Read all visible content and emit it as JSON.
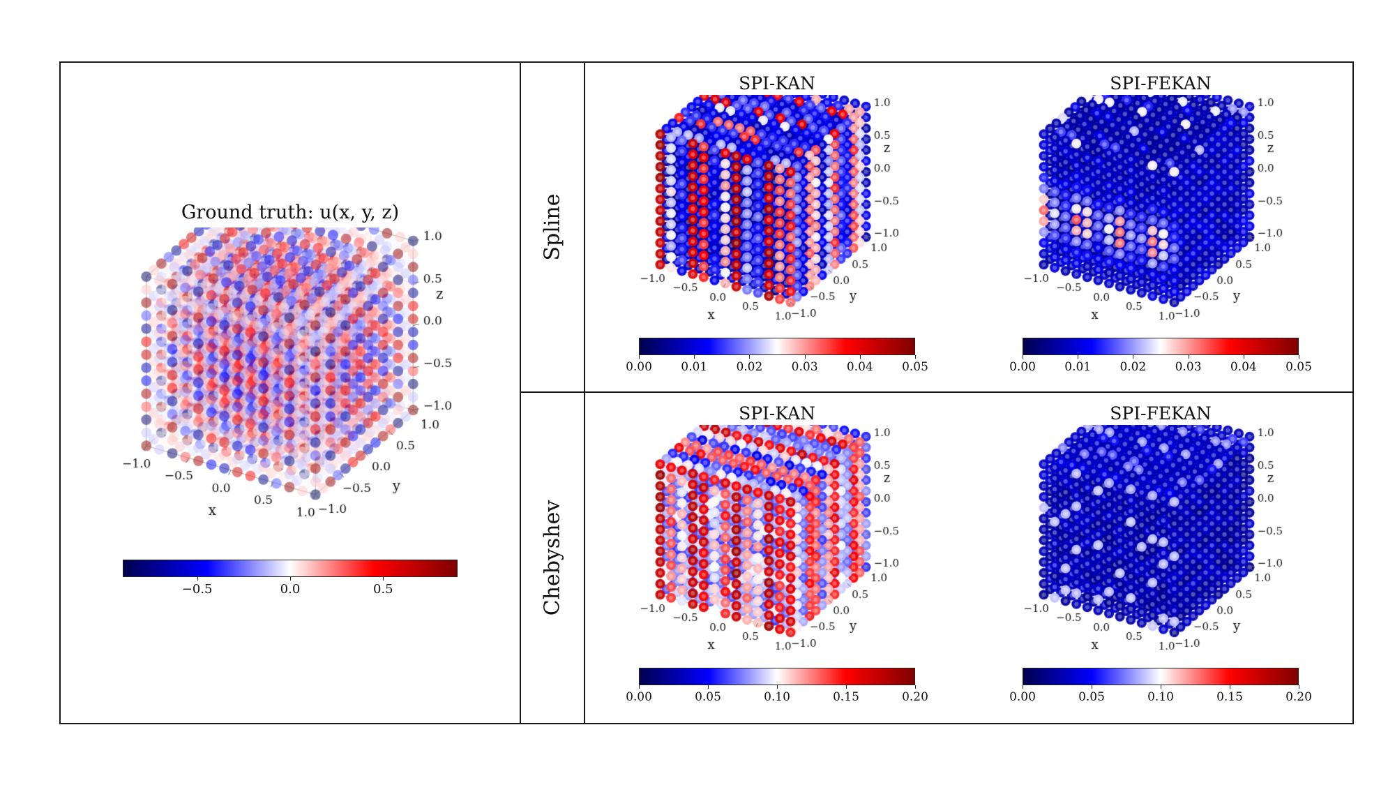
{
  "figure": {
    "rows": [
      {
        "label": "Spline"
      },
      {
        "label": "Chebyshev"
      }
    ],
    "columns": [
      "SPI-KAN",
      "SPI-FEKAN"
    ]
  },
  "colormap": {
    "name": "seismic",
    "stops": [
      "#00004c",
      "#0000ff",
      "#ffffff",
      "#ff0000",
      "#7f0000"
    ]
  },
  "chart_data": [
    {
      "id": "ground_truth",
      "type": "scatter",
      "projection": "3d",
      "title": "Ground truth: u(x, y, z)",
      "xlabel": "x",
      "ylabel": "y",
      "zlabel": "z",
      "axis_range": [
        -1.0,
        1.0
      ],
      "x_ticks": [
        -1.0,
        -0.5,
        0.0,
        0.5,
        1.0
      ],
      "y_ticks": [
        -1.0,
        -0.5,
        0.0,
        0.5,
        1.0
      ],
      "z_ticks": [
        1.0,
        0.5,
        0.0,
        -0.5,
        -1.0
      ],
      "grid_points_per_axis": 14,
      "pattern": "ground_truth",
      "description": "3D grid of points in [-1,1]^3 coloured by u(x,y,z); alternating positive (red) and negative (blue) lobes in a checkerboard pattern",
      "colorbar": {
        "vmin": -0.9,
        "vmax": 0.9,
        "tick_values": [
          -0.5,
          0.0,
          0.5
        ],
        "tick_labels": [
          "−0.5",
          "0.0",
          "0.5"
        ]
      }
    },
    {
      "id": "spline_spi_kan",
      "row": "Spline",
      "type": "scatter",
      "projection": "3d",
      "title": "SPI-KAN",
      "xlabel": "x",
      "ylabel": "y",
      "zlabel": "z",
      "axis_range": [
        -1.0,
        1.0
      ],
      "x_ticks": [
        -1.0,
        -0.5,
        0.0,
        0.5,
        1.0
      ],
      "y_ticks": [
        -1.0,
        -0.5,
        0.0,
        0.5,
        1.0
      ],
      "z_ticks": [
        1.0,
        0.5,
        0.0,
        -0.5,
        -1.0
      ],
      "grid_points_per_axis": 13,
      "pattern": "spline_kan",
      "description": "Pointwise error, mostly low (blue) with strong vertical stripes of high error (red) on the front face and scattered red rows on top",
      "colorbar": {
        "vmin": 0.0,
        "vmax": 0.05,
        "tick_values": [
          0.0,
          0.01,
          0.02,
          0.03,
          0.04,
          0.05
        ],
        "tick_labels": [
          "0.00",
          "0.01",
          "0.02",
          "0.03",
          "0.04",
          "0.05"
        ]
      }
    },
    {
      "id": "spline_spi_fekan",
      "row": "Spline",
      "type": "scatter",
      "projection": "3d",
      "title": "SPI-FEKAN",
      "xlabel": "x",
      "ylabel": "y",
      "zlabel": "z",
      "axis_range": [
        -1.0,
        1.0
      ],
      "x_ticks": [
        -1.0,
        -0.5,
        0.0,
        0.5,
        1.0
      ],
      "y_ticks": [
        -1.0,
        -0.5,
        0.0,
        0.5,
        1.0
      ],
      "z_ticks": [
        1.0,
        0.5,
        0.0,
        -0.5,
        -1.0
      ],
      "grid_points_per_axis": 13,
      "pattern": "spline_fekan",
      "description": "Pointwise error, predominantly low (blue) with a faint horizontal reddish band on the front face",
      "colorbar": {
        "vmin": 0.0,
        "vmax": 0.05,
        "tick_values": [
          0.0,
          0.01,
          0.02,
          0.03,
          0.04,
          0.05
        ],
        "tick_labels": [
          "0.00",
          "0.01",
          "0.02",
          "0.03",
          "0.04",
          "0.05"
        ]
      }
    },
    {
      "id": "chebyshev_spi_kan",
      "row": "Chebyshev",
      "type": "scatter",
      "projection": "3d",
      "title": "SPI-KAN",
      "xlabel": "x",
      "ylabel": "y",
      "zlabel": "z",
      "axis_range": [
        -1.0,
        1.0
      ],
      "x_ticks": [
        -1.0,
        -0.5,
        0.0,
        0.5,
        1.0
      ],
      "y_ticks": [
        -1.0,
        -0.5,
        0.0,
        0.5,
        1.0
      ],
      "z_ticks": [
        1.0,
        0.5,
        0.0,
        -0.5,
        -1.0
      ],
      "grid_points_per_axis": 13,
      "pattern": "cheb_kan",
      "description": "Pointwise error, large over most of the cube: front face mostly red with blue flecks, top face alternating red/blue rows",
      "colorbar": {
        "vmin": 0.0,
        "vmax": 0.2,
        "tick_values": [
          0.0,
          0.05,
          0.1,
          0.15,
          0.2
        ],
        "tick_labels": [
          "0.00",
          "0.05",
          "0.10",
          "0.15",
          "0.20"
        ]
      }
    },
    {
      "id": "chebyshev_spi_fekan",
      "row": "Chebyshev",
      "type": "scatter",
      "projection": "3d",
      "title": "SPI-FEKAN",
      "xlabel": "x",
      "ylabel": "y",
      "zlabel": "z",
      "axis_range": [
        -1.0,
        1.0
      ],
      "x_ticks": [
        -1.0,
        -0.5,
        0.0,
        0.5,
        1.0
      ],
      "y_ticks": [
        -1.0,
        -0.5,
        0.0,
        0.5,
        1.0
      ],
      "z_ticks": [
        1.0,
        0.5,
        0.0,
        -0.5,
        -1.0
      ],
      "grid_points_per_axis": 13,
      "pattern": "cheb_fekan",
      "description": "Pointwise error, almost entirely low (dark blue) with light red speckles on the top face",
      "colorbar": {
        "vmin": 0.0,
        "vmax": 0.2,
        "tick_values": [
          0.0,
          0.05,
          0.1,
          0.15,
          0.2
        ],
        "tick_labels": [
          "0.00",
          "0.05",
          "0.10",
          "0.15",
          "0.20"
        ]
      }
    }
  ]
}
